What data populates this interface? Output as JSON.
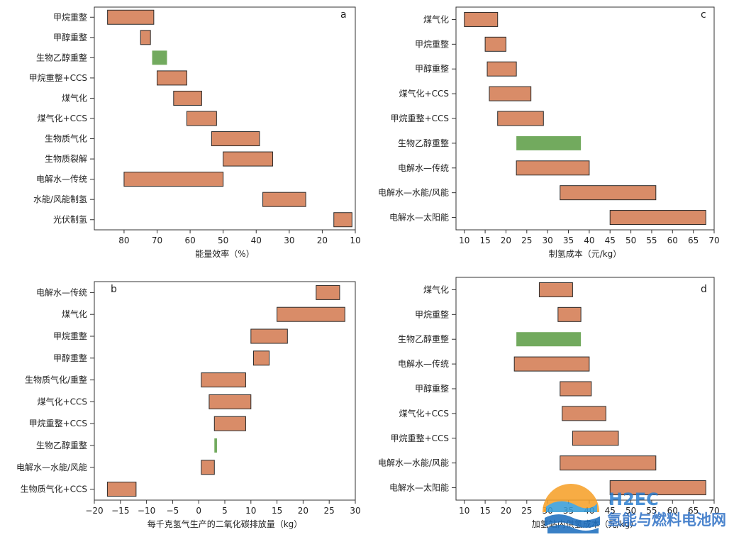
{
  "colors": {
    "bar": "#d98c68",
    "bar_highlight": "#72aa5e",
    "bar_stroke": "#2a2a2a",
    "axis": "#333333",
    "text": "#222222"
  },
  "chart_data": [
    {
      "panel": "a",
      "type": "bar",
      "orientation": "horizontal",
      "range_bars": true,
      "x_reversed": true,
      "xlabel": "能量效率（%）",
      "xlim": [
        89,
        10
      ],
      "xticks": [
        80,
        70,
        60,
        50,
        40,
        30,
        20,
        10
      ],
      "categories": [
        "甲烷重整",
        "甲醇重整",
        "生物乙醇重整",
        "甲烷重整+CCS",
        "煤气化",
        "煤气化+CCS",
        "生物质气化",
        "生物质裂解",
        "电解水—传统",
        "水能/风能制氢",
        "光伏制氢"
      ],
      "ranges": [
        [
          85,
          71
        ],
        [
          75,
          72
        ],
        [
          71.5,
          67
        ],
        [
          70,
          61
        ],
        [
          65,
          56.5
        ],
        [
          61,
          52
        ],
        [
          53.5,
          39
        ],
        [
          50,
          35
        ],
        [
          80,
          50
        ],
        [
          38,
          25
        ],
        [
          16.5,
          11
        ]
      ],
      "highlight": [
        false,
        false,
        true,
        false,
        false,
        false,
        false,
        false,
        false,
        false,
        false
      ]
    },
    {
      "panel": "c",
      "type": "bar",
      "orientation": "horizontal",
      "range_bars": true,
      "xlabel": "制氢成本（元/kg）",
      "xlim": [
        8,
        70
      ],
      "xticks": [
        10,
        15,
        20,
        25,
        30,
        35,
        40,
        45,
        50,
        55,
        60,
        65,
        70
      ],
      "categories": [
        "煤气化",
        "甲烷重整",
        "甲醇重整",
        "煤气化+CCS",
        "甲烷重整+CCS",
        "生物乙醇重整",
        "电解水—传统",
        "电解水—水能/风能",
        "电解水—太阳能"
      ],
      "ranges": [
        [
          10,
          18
        ],
        [
          15,
          20
        ],
        [
          15.5,
          22.5
        ],
        [
          16,
          26
        ],
        [
          18,
          29
        ],
        [
          22.5,
          38
        ],
        [
          22.5,
          40
        ],
        [
          33,
          56
        ],
        [
          45,
          68
        ]
      ],
      "highlight": [
        false,
        false,
        false,
        false,
        false,
        true,
        false,
        false,
        false
      ]
    },
    {
      "panel": "b",
      "type": "bar",
      "orientation": "horizontal",
      "range_bars": true,
      "xlabel": "每千克氢气生产的二氧化碳排放量（kg）",
      "xlim": [
        -20,
        30
      ],
      "xticks": [
        -20,
        -15,
        -10,
        -5,
        0,
        5,
        10,
        15,
        20,
        25,
        30
      ],
      "categories": [
        "电解水—传统",
        "煤气化",
        "甲烷重整",
        "甲醇重整",
        "生物质气化/重整",
        "煤气化+CCS",
        "甲烷重整+CCS",
        "生物乙醇重整",
        "电解水—水能/风能",
        "生物质气化+CCS"
      ],
      "ranges": [
        [
          22.5,
          27
        ],
        [
          15,
          28
        ],
        [
          10,
          17
        ],
        [
          10.5,
          13.5
        ],
        [
          0.5,
          9
        ],
        [
          2,
          10
        ],
        [
          3,
          9
        ],
        [
          3,
          3.5
        ],
        [
          0.5,
          3
        ],
        [
          -17.5,
          -12
        ]
      ],
      "highlight": [
        false,
        false,
        false,
        false,
        false,
        false,
        false,
        true,
        false,
        false
      ]
    },
    {
      "panel": "d",
      "type": "bar",
      "orientation": "horizontal",
      "range_bars": true,
      "xlabel": "加氢站内供氢成本（元/kg）",
      "xlim": [
        8,
        70
      ],
      "xticks": [
        10,
        15,
        20,
        25,
        30,
        35,
        40,
        45,
        50,
        55,
        60,
        65,
        70
      ],
      "categories": [
        "煤气化",
        "甲烷重整",
        "生物乙醇重整",
        "电解水—传统",
        "甲醇重整",
        "煤气化+CCS",
        "甲烷重整+CCS",
        "电解水—水能/风能",
        "电解水—太阳能"
      ],
      "ranges": [
        [
          28,
          36
        ],
        [
          32.5,
          38
        ],
        [
          22.5,
          38
        ],
        [
          22,
          40
        ],
        [
          33,
          40.5
        ],
        [
          33.5,
          44
        ],
        [
          36,
          47
        ],
        [
          33,
          56
        ],
        [
          45,
          68
        ]
      ],
      "highlight": [
        false,
        false,
        true,
        false,
        false,
        false,
        false,
        false,
        false
      ]
    }
  ],
  "watermark": {
    "brand": "H2EC",
    "subtitle": "氢能与燃料电池网"
  }
}
